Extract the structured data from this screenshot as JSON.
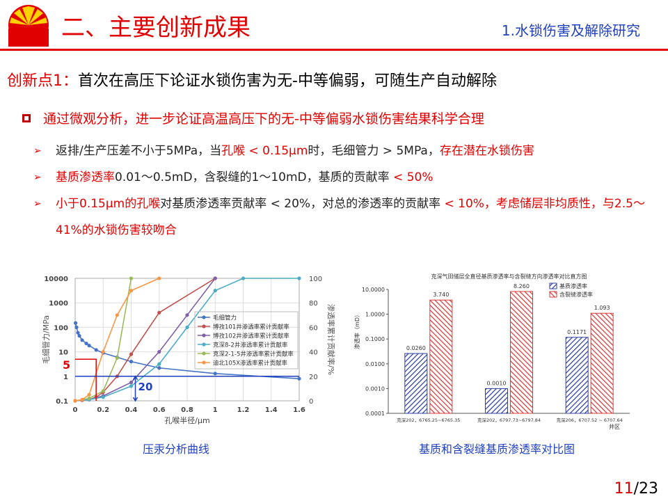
{
  "header": {
    "title": "二、主要创新成果",
    "section": "1.水锁伤害及解除研究"
  },
  "point": {
    "label": "创新点1：",
    "text": "首次在高压下论证水锁伤害为无-中等偏弱，可随生产自动解除"
  },
  "bullet": {
    "segments": [
      {
        "text": "通过微观分析，进一步论证高温高压下的无-中等偏弱水锁伤害结果",
        "color": "#e00000"
      },
      {
        "text": "科学合理",
        "color": "#e00000"
      }
    ]
  },
  "subpoints": [
    {
      "segments": [
        {
          "text": "返排/生产压差不小于5MPa，当",
          "color": "#222222"
        },
        {
          "text": "孔喉 < 0.15μm",
          "color": "#e00000"
        },
        {
          "text": "时，毛细管力 > 5MPa，",
          "color": "#222222"
        },
        {
          "text": "存在潜在水锁伤害",
          "color": "#e00000"
        }
      ]
    },
    {
      "segments": [
        {
          "text": "基质渗透率",
          "color": "#e00000"
        },
        {
          "text": "0.01～0.5mD，含裂缝的1～10mD，基质的贡献率 ",
          "color": "#222222"
        },
        {
          "text": "< 50%",
          "color": "#e00000"
        }
      ]
    },
    {
      "segments": [
        {
          "text": "小于0.15μm的孔喉",
          "color": "#e00000"
        },
        {
          "text": "对基质渗透率贡献率 < 20%，对总的渗透率的贡献率 ",
          "color": "#222222"
        },
        {
          "text": "< 10%，考虑储层非均质性，与2.5～41%的水锁伤害较吻合",
          "color": "#e00000"
        }
      ]
    }
  ],
  "left_chart": {
    "type": "line",
    "xlabel": "孔喉半径/μm",
    "ylabel": "毛细管力/MPa",
    "y2label": "渗透率累计贡献率/%",
    "xlim": [
      0,
      1.6
    ],
    "xticks": [
      0,
      0.2,
      0.4,
      0.6,
      0.8,
      1,
      1.2,
      1.4,
      1.6
    ],
    "ylim": [
      0.1,
      10000
    ],
    "yticks": [
      0.1,
      1,
      10,
      100,
      1000,
      10000
    ],
    "ylog": true,
    "y2lim": [
      0,
      100
    ],
    "y2ticks": [
      0,
      20,
      40,
      60,
      80,
      100
    ],
    "grid": true,
    "series": [
      {
        "name": "毛细管力",
        "color": "#4472c4",
        "axis": "y",
        "x": [
          0.003,
          0.01,
          0.02,
          0.03,
          0.05,
          0.08,
          0.1,
          0.15,
          0.2,
          0.3,
          0.4,
          0.6,
          1.0,
          1.6
        ],
        "values": [
          150,
          100,
          60,
          45,
          30,
          22,
          18,
          12,
          9,
          6,
          4,
          2.2,
          1.3,
          0.8
        ]
      },
      {
        "name": "博孜101井渗透率累计贡献率",
        "color": "#c0504d",
        "axis": "y2",
        "x": [
          0,
          0.05,
          0.1,
          0.15,
          0.2,
          0.3,
          0.4,
          0.6,
          1.0
        ],
        "values": [
          0,
          0.5,
          1,
          3,
          7,
          20,
          38,
          72,
          100
        ]
      },
      {
        "name": "博孜102井渗透率累计贡献率",
        "color": "#7f5fa8",
        "axis": "y2",
        "x": [
          0,
          0.1,
          0.2,
          0.4,
          0.6,
          0.8,
          1.0
        ],
        "values": [
          0,
          1,
          4,
          15,
          40,
          70,
          100
        ]
      },
      {
        "name": "克深8-2井渗透率累计贡献率",
        "color": "#4bacc6",
        "axis": "y2",
        "x": [
          0,
          0.1,
          0.2,
          0.4,
          0.6,
          0.8,
          1.0,
          1.2,
          1.6
        ],
        "values": [
          0,
          1,
          3,
          12,
          30,
          60,
          90,
          100,
          100
        ]
      },
      {
        "name": "克深2-1-5井渗透率累计贡献率",
        "color": "#9bbb59",
        "axis": "y2",
        "x": [
          0,
          0.1,
          0.2,
          0.3,
          0.4
        ],
        "values": [
          0,
          2,
          8,
          35,
          100
        ]
      },
      {
        "name": "迪北105X渗透率累计贡献率",
        "color": "#f79646",
        "axis": "y2",
        "x": [
          0,
          0.05,
          0.1,
          0.2,
          0.3,
          0.4,
          0.6
        ],
        "values": [
          0,
          1,
          5,
          40,
          70,
          90,
          100
        ]
      }
    ],
    "annotations": [
      {
        "text": "5",
        "x": 0.15,
        "y": 5,
        "color": "#e00000"
      },
      {
        "text": "20",
        "x": 0.43,
        "y2": 20,
        "color": "#1f3fbf"
      }
    ]
  },
  "right_chart": {
    "type": "bar",
    "title": "克深气田储层全直径基质渗透率与含裂缝方向渗透率对比直方图",
    "ylabel": "渗透率（mD）",
    "xlabel": "井区",
    "categories": [
      "克深202，6765.25~6765.35",
      "克深202，6797.73~6797.84",
      "克深206，6707.52 ~ 6707.64"
    ],
    "ylim": [
      0.0001,
      10
    ],
    "ylog": true,
    "yticks": [
      {
        "value": 10,
        "label": "10.0000"
      },
      {
        "value": 1,
        "label": "1.0000"
      },
      {
        "value": 0.1,
        "label": "0.1000"
      },
      {
        "value": 0.01,
        "label": "0.0100"
      },
      {
        "value": 0.001,
        "label": "0.0010"
      },
      {
        "value": 0.0001,
        "label": "0.0001"
      }
    ],
    "series": [
      {
        "name": "基质渗透率",
        "color": "#2e3f9e",
        "values": [
          0.026,
          0.001,
          0.1171
        ],
        "value_labels": [
          "0.0260",
          "0.0010",
          "0.1171"
        ]
      },
      {
        "name": "含裂缝渗透率",
        "color": "#d83a3a",
        "values": [
          3.74,
          8.26,
          1.093
        ],
        "value_labels": [
          "3.740",
          "8.260",
          "1.093"
        ]
      }
    ]
  },
  "captions": {
    "left": "压汞分析曲线",
    "right": "基质和含裂缝基质渗透率对比图"
  },
  "page": {
    "current": "11",
    "total": "/23"
  }
}
